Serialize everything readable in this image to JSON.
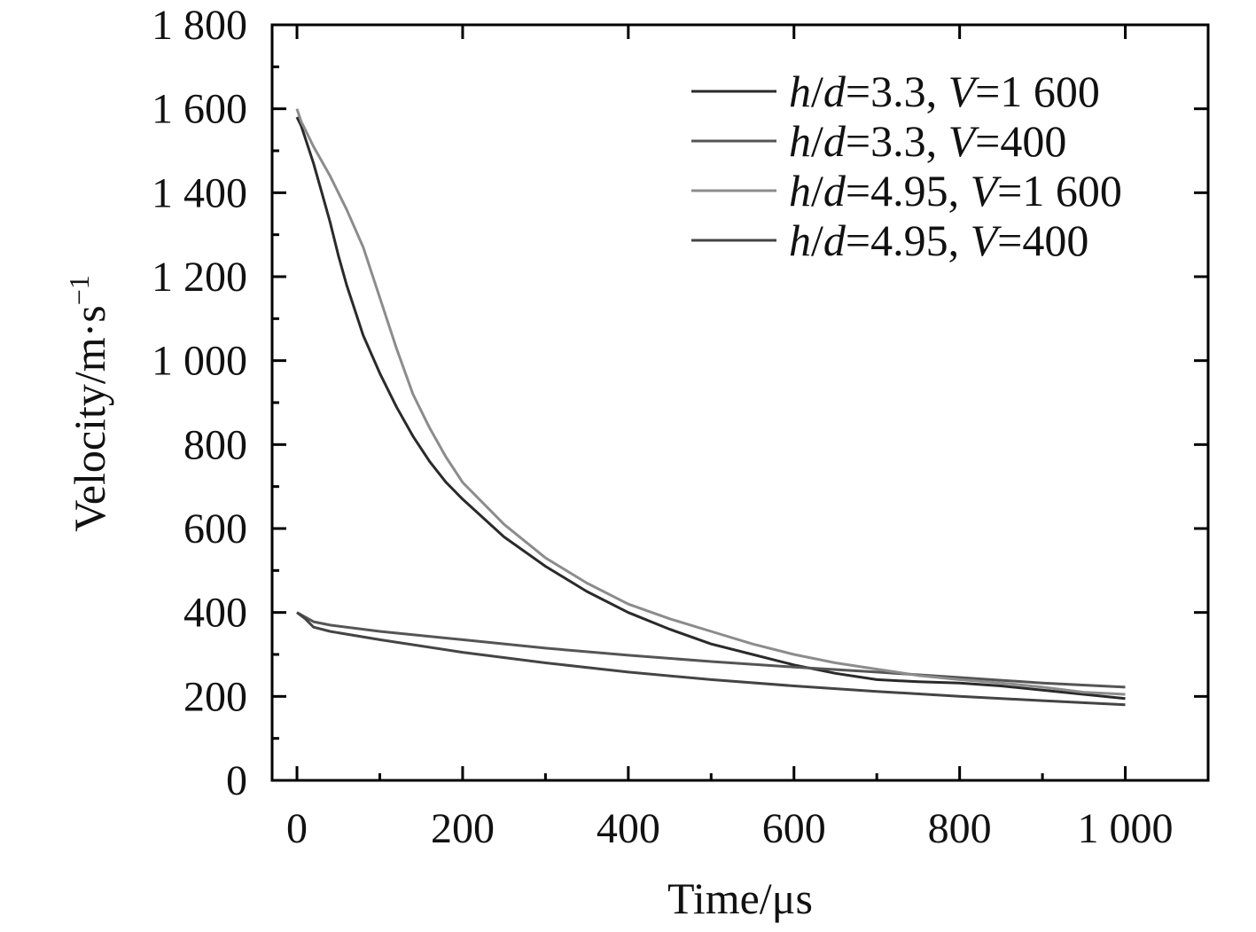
{
  "chart_data": {
    "type": "line",
    "title": "",
    "xlabel": "Time/μs",
    "ylabel": {
      "base": "Velocity/m·s",
      "sup": "−1"
    },
    "xlim": [
      -30,
      1100
    ],
    "ylim": [
      0,
      1800
    ],
    "x_ticks": [
      0,
      200,
      400,
      600,
      800,
      1000
    ],
    "x_tick_labels": [
      "0",
      "200",
      "400",
      "600",
      "800",
      "1 000"
    ],
    "y_ticks": [
      0,
      200,
      400,
      600,
      800,
      1000,
      1200,
      1400,
      1600,
      1800
    ],
    "y_tick_labels": [
      "0",
      "200",
      "400",
      "600",
      "800",
      "1 000",
      "1 200",
      "1 400",
      "1 600",
      "1 800"
    ],
    "grid": false,
    "legend_position": "top-right",
    "series": [
      {
        "name": {
          "a": "h",
          "b": "/",
          "c": "d",
          "d": "=3.3, ",
          "e": "V",
          "f": "=1 600"
        },
        "color": "#2a2a2a",
        "x": [
          0,
          5,
          10,
          20,
          30,
          40,
          50,
          60,
          80,
          100,
          120,
          140,
          160,
          180,
          200,
          250,
          300,
          350,
          400,
          450,
          500,
          550,
          600,
          650,
          700,
          750,
          800,
          850,
          900,
          950,
          1000
        ],
        "y": [
          1580,
          1560,
          1530,
          1470,
          1400,
          1330,
          1250,
          1180,
          1060,
          970,
          890,
          820,
          760,
          710,
          670,
          580,
          510,
          450,
          400,
          360,
          325,
          300,
          275,
          255,
          240,
          235,
          232,
          225,
          215,
          205,
          195
        ]
      },
      {
        "name": {
          "a": "h",
          "b": "/",
          "c": "d",
          "d": "=3.3, ",
          "e": "V",
          "f": "=400"
        },
        "color": "#555555",
        "x": [
          0,
          20,
          40,
          100,
          200,
          300,
          400,
          500,
          600,
          700,
          800,
          900,
          1000
        ],
        "y": [
          400,
          378,
          370,
          355,
          335,
          315,
          298,
          283,
          270,
          258,
          245,
          232,
          222
        ]
      },
      {
        "name": {
          "a": "h",
          "b": "/",
          "c": "d",
          "d": "=4.95, ",
          "e": "V",
          "f": "=1 600"
        },
        "color": "#8c8c8c",
        "x": [
          0,
          5,
          10,
          20,
          40,
          60,
          80,
          100,
          120,
          140,
          160,
          180,
          200,
          250,
          300,
          350,
          400,
          450,
          500,
          550,
          600,
          650,
          700,
          750,
          800,
          850,
          900,
          950,
          1000
        ],
        "y": [
          1600,
          1570,
          1550,
          1510,
          1440,
          1360,
          1270,
          1150,
          1030,
          920,
          840,
          770,
          710,
          610,
          530,
          470,
          420,
          385,
          355,
          325,
          300,
          280,
          265,
          250,
          240,
          232,
          222,
          210,
          205
        ]
      },
      {
        "name": {
          "a": "h",
          "b": "/",
          "c": "d",
          "d": "=4.95, ",
          "e": "V",
          "f": "=400"
        },
        "color": "#444444",
        "x": [
          0,
          10,
          20,
          40,
          100,
          200,
          300,
          400,
          500,
          600,
          700,
          800,
          900,
          1000
        ],
        "y": [
          400,
          385,
          365,
          355,
          335,
          305,
          280,
          258,
          240,
          225,
          212,
          200,
          190,
          180
        ]
      }
    ]
  }
}
